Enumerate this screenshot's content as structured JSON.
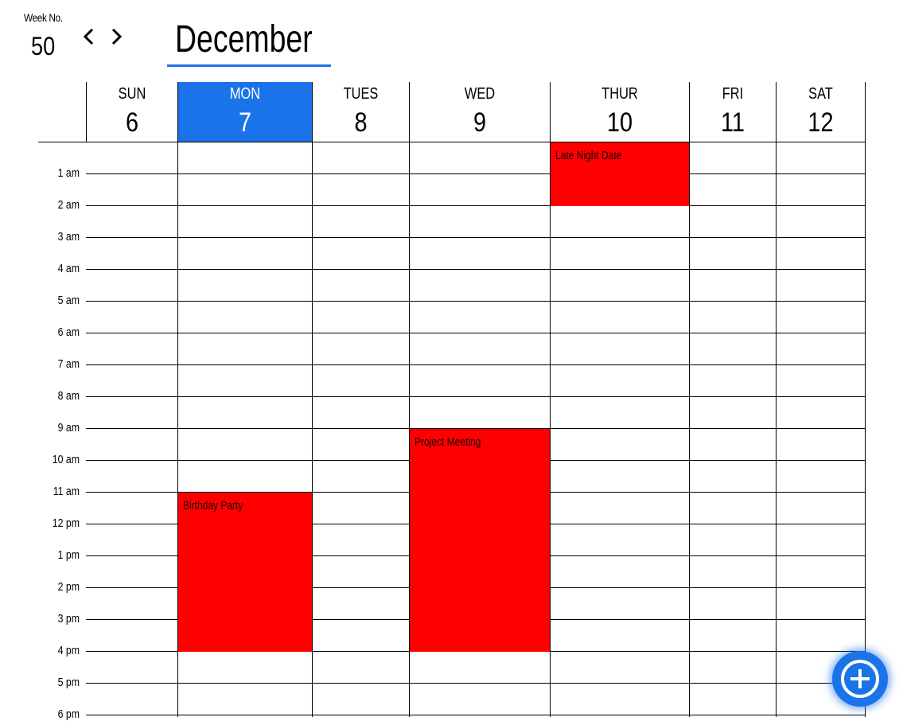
{
  "week": {
    "label": "Week No.",
    "number": "50"
  },
  "month": "December",
  "days": [
    {
      "name": "SUN",
      "date": "6"
    },
    {
      "name": "MON",
      "date": "7"
    },
    {
      "name": "TUES",
      "date": "8"
    },
    {
      "name": "WED",
      "date": "9"
    },
    {
      "name": "THUR",
      "date": "10"
    },
    {
      "name": "FRI",
      "date": "11"
    },
    {
      "name": "SAT",
      "date": "12"
    }
  ],
  "today_index": 1,
  "hours": [
    "1 am",
    "2 am",
    "3 am",
    "4 am",
    "5 am",
    "6 am",
    "7 am",
    "8 am",
    "9 am",
    "10 am",
    "11 am",
    "12 pm",
    "1 pm",
    "2 pm",
    "3 pm",
    "4 pm",
    "5 pm",
    "6 pm"
  ],
  "events": [
    {
      "title": "Late Night Date",
      "day": "THUR",
      "start": "12 am",
      "end": "2 am"
    },
    {
      "title": "Project Meeting",
      "day": "WED",
      "start": "9 am",
      "end": "4 pm"
    },
    {
      "title": "Birthday Party",
      "day": "MON",
      "start": "11 am",
      "end": "4 pm"
    }
  ],
  "colors": {
    "accent": "#1a73e8",
    "event": "#ff0000",
    "grid": "#000000"
  },
  "icons": {
    "prev": "chevron-left-icon",
    "next": "chevron-right-icon",
    "add": "plus-circle-icon"
  }
}
